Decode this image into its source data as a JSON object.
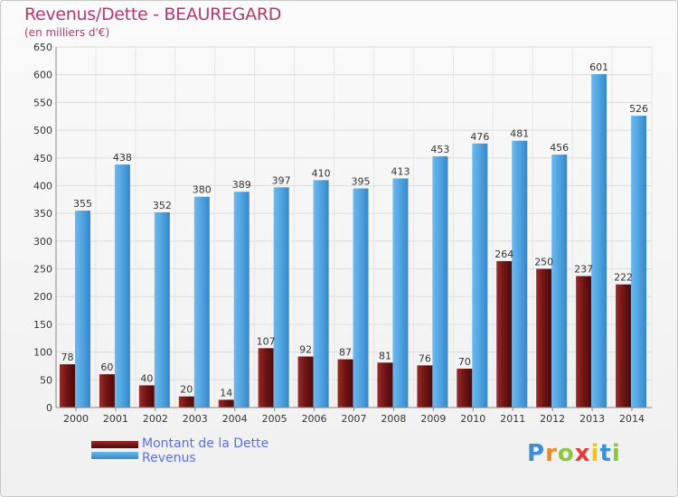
{
  "header": {
    "title": "Revenus/Dette - BEAUREGARD",
    "subtitle": "(en milliers d'€)"
  },
  "legend": {
    "items": [
      {
        "label": "Montant de la Dette",
        "color": "#7a1a1a"
      },
      {
        "label": "Revenus",
        "color": "#4fa3e0"
      }
    ]
  },
  "brand": {
    "letters": [
      {
        "ch": "P",
        "color": "#3a8fd6"
      },
      {
        "ch": "r",
        "color": "#f08a1c"
      },
      {
        "ch": "o",
        "color": "#8cc63f"
      },
      {
        "ch": "x",
        "color": "#e23b3b"
      },
      {
        "ch": "i",
        "color": "#f0c419"
      },
      {
        "ch": "t",
        "color": "#3a8fd6"
      },
      {
        "ch": "i",
        "color": "#8cc63f"
      }
    ]
  },
  "chart_data": {
    "type": "bar",
    "categories": [
      "2000",
      "2001",
      "2002",
      "2003",
      "2004",
      "2005",
      "2006",
      "2007",
      "2008",
      "2009",
      "2010",
      "2011",
      "2012",
      "2013",
      "2014"
    ],
    "series": [
      {
        "name": "Montant de la Dette",
        "color": "#7a1a1a",
        "values": [
          78,
          60,
          40,
          20,
          14,
          107,
          92,
          87,
          81,
          76,
          70,
          264,
          250,
          237,
          222
        ]
      },
      {
        "name": "Revenus",
        "color": "#4fa3e0",
        "values": [
          355,
          438,
          352,
          380,
          389,
          397,
          410,
          395,
          413,
          453,
          476,
          481,
          456,
          601,
          526
        ]
      }
    ],
    "ylim": [
      0,
      650
    ],
    "yticks": [
      0,
      50,
      100,
      150,
      200,
      250,
      300,
      350,
      400,
      450,
      500,
      550,
      600,
      650
    ],
    "grid": true
  }
}
